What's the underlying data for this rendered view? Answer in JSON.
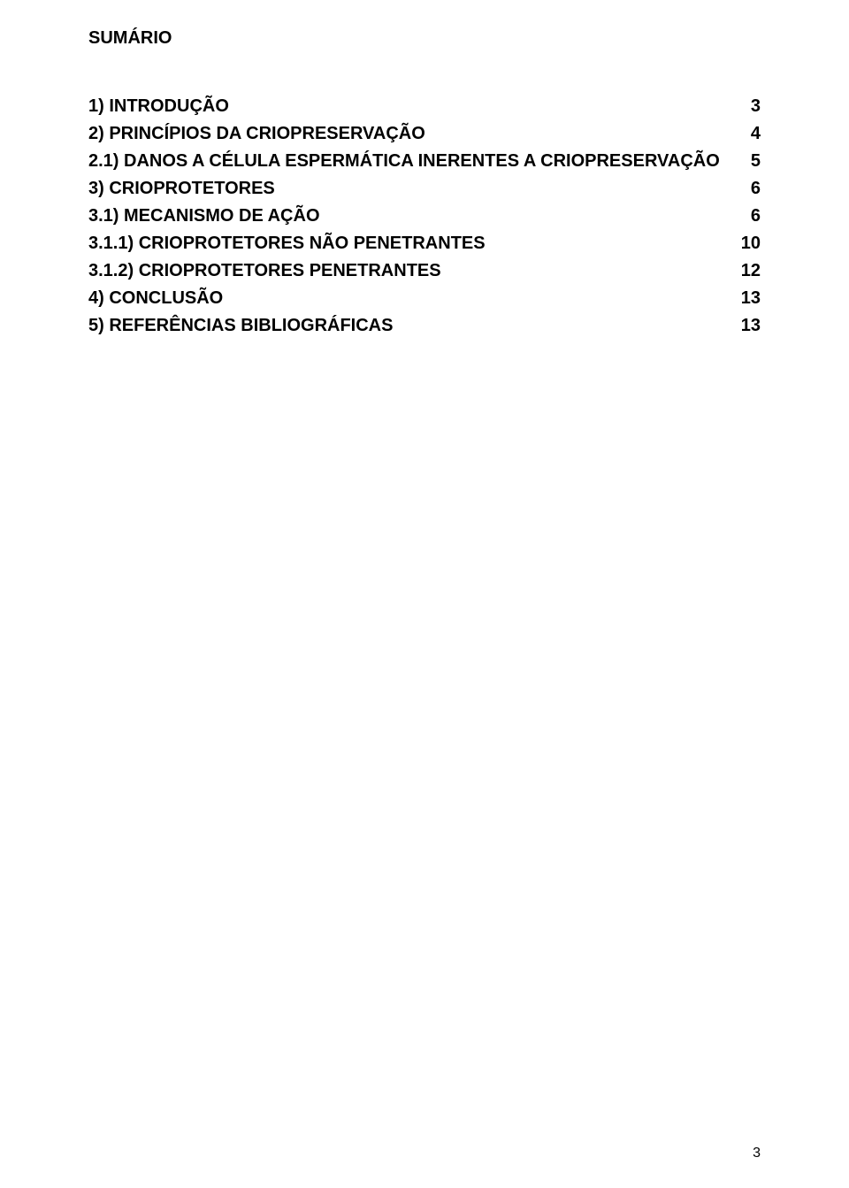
{
  "title": "SUMÁRIO",
  "entries": [
    {
      "label": "1) INTRODUÇÃO",
      "page": "3"
    },
    {
      "label": "2) PRINCÍPIOS DA CRIOPRESERVAÇÃO",
      "page": "4"
    },
    {
      "label": "2.1) DANOS A CÉLULA ESPERMÁTICA INERENTES A CRIOPRESERVAÇÃO",
      "page": "5"
    },
    {
      "label": "3) CRIOPROTETORES",
      "page": "6"
    },
    {
      "label": "3.1) MECANISMO DE AÇÃO",
      "page": "6"
    },
    {
      "label": "3.1.1) CRIOPROTETORES NÃO PENETRANTES",
      "page": "10"
    },
    {
      "label": "3.1.2) CRIOPROTETORES PENETRANTES",
      "page": "12"
    },
    {
      "label": "4) CONCLUSÃO",
      "page": "13"
    },
    {
      "label": "5) REFERÊNCIAS BIBLIOGRÁFICAS",
      "page": "13"
    }
  ],
  "pageNumber": "3"
}
